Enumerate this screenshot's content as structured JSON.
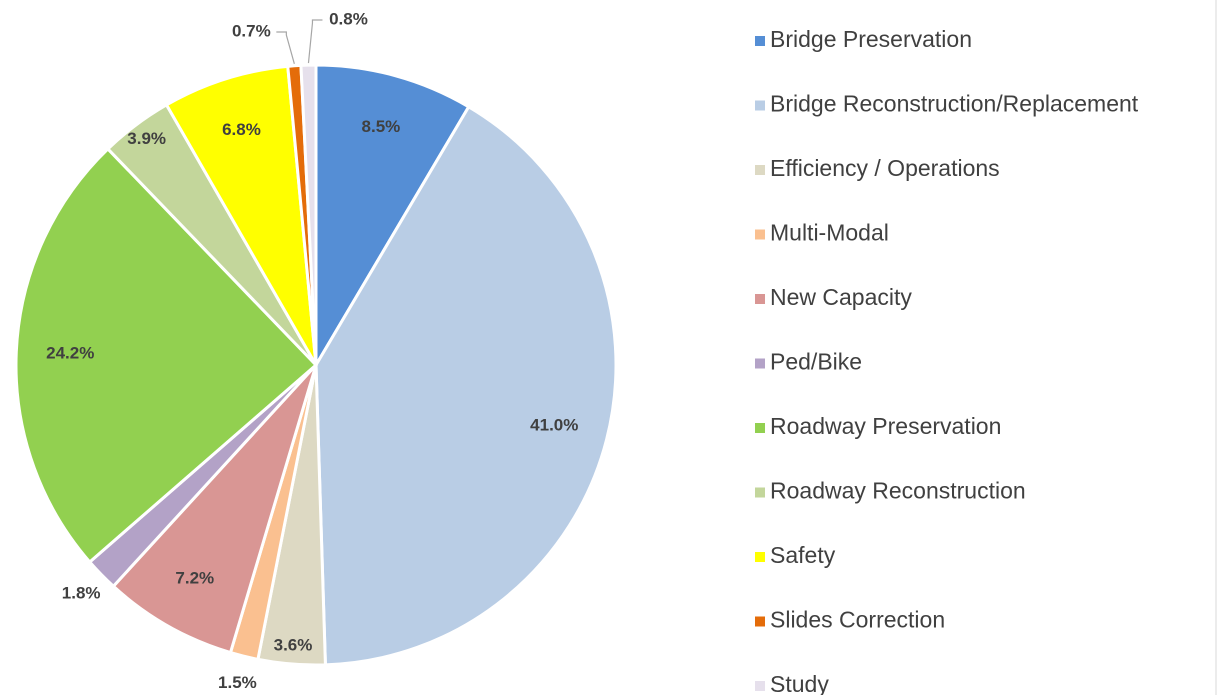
{
  "chart_data": {
    "type": "pie",
    "categories": [
      "Bridge Preservation",
      "Bridge Reconstruction/Replacement",
      "Efficiency / Operations",
      "Multi-Modal",
      "New Capacity",
      "Ped/Bike",
      "Roadway Preservation",
      "Roadway Reconstruction",
      "Safety",
      "Slides Correction",
      "Study"
    ],
    "values": [
      8.5,
      41.0,
      3.6,
      1.5,
      7.2,
      1.8,
      24.2,
      3.9,
      6.8,
      0.7,
      0.8
    ],
    "value_labels": [
      "8.5%",
      "41.0%",
      "3.6%",
      "1.5%",
      "7.2%",
      "1.8%",
      "24.2%",
      "3.9%",
      "6.8%",
      "0.7%",
      "0.8%"
    ],
    "colors": [
      "#558ed5",
      "#b9cde5",
      "#ddd9c3",
      "#fac090",
      "#d99694",
      "#b3a2c7",
      "#92d050",
      "#c3d69b",
      "#ffff00",
      "#e46c0a",
      "#e6e0ec"
    ],
    "legend": "right"
  }
}
